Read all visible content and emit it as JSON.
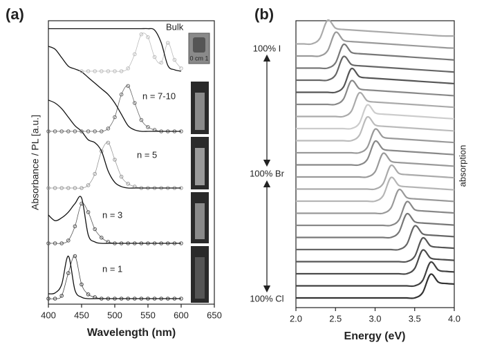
{
  "chart_data": [
    {
      "type": "line",
      "panel_label": "(a)",
      "xlabel": "Wavelength (nm)",
      "ylabel": "Absorbance / PL [a.u.]",
      "inset_label": "0 cm 1",
      "xlim": [
        400,
        650
      ],
      "xticks": [
        400,
        450,
        500,
        550,
        600,
        650
      ],
      "x": [
        400,
        410,
        420,
        430,
        440,
        450,
        460,
        470,
        480,
        490,
        500,
        510,
        520,
        530,
        540,
        550,
        560,
        570,
        580,
        590,
        600
      ],
      "samples": [
        {
          "label": "n = 1",
          "pl_color": "#444444",
          "absorbance": [
            1.7,
            2,
            5,
            15,
            3,
            0.5,
            0,
            0,
            0,
            0,
            0,
            0,
            0,
            0,
            0,
            0,
            0,
            0,
            0,
            0,
            0
          ],
          "pl": [
            0,
            0,
            1,
            9,
            15,
            5,
            1.5,
            0.5,
            0,
            0,
            0,
            0,
            0,
            0,
            0,
            0,
            0,
            0,
            0,
            0,
            0
          ]
        },
        {
          "label": "n = 3",
          "pl_color": "#555555",
          "absorbance": [
            10,
            8,
            9,
            11,
            14,
            16,
            3,
            0.5,
            0,
            0,
            0,
            0,
            0,
            0,
            0,
            0,
            0,
            0,
            0,
            0,
            0
          ],
          "pl": [
            0,
            0,
            0,
            1,
            6,
            14,
            11,
            5,
            2,
            0.5,
            0,
            0,
            0,
            0,
            0,
            0,
            0,
            0,
            0,
            0,
            0
          ]
        },
        {
          "label": "n = 5",
          "pl_color": "#999999",
          "absorbance": [
            31,
            30,
            28,
            25,
            22,
            20,
            17,
            16,
            13,
            6,
            2,
            0.5,
            0,
            0,
            0,
            0,
            0,
            0,
            0,
            0,
            0
          ],
          "pl": [
            0,
            0,
            0,
            0,
            0,
            0,
            1,
            5,
            13,
            16,
            10,
            4,
            1.5,
            0.5,
            0,
            0,
            0,
            0,
            0,
            0,
            0
          ]
        },
        {
          "label": "n = 7-10",
          "pl_color": "#666666",
          "absorbance": [
            30,
            29,
            26,
            23,
            22,
            21,
            19,
            17,
            15,
            13,
            10,
            6,
            2,
            0.5,
            0,
            0,
            0,
            0,
            0,
            0,
            0
          ],
          "pl": [
            0,
            0,
            0,
            0,
            0,
            0,
            0,
            0,
            0,
            1,
            5,
            13,
            16,
            10,
            4,
            1.5,
            0.5,
            0,
            0,
            0,
            0
          ]
        },
        {
          "label": "Bulk",
          "pl_color": "#bbbbbb",
          "absorbance": [
            15,
            15,
            15,
            15,
            15,
            15,
            15,
            15,
            15,
            15,
            15,
            15,
            15,
            15,
            15,
            15,
            14.5,
            10,
            2,
            0.5,
            0
          ],
          "pl": [
            null,
            null,
            null,
            null,
            null,
            0,
            0,
            0,
            0,
            0,
            0,
            0,
            1,
            6,
            13,
            12,
            5,
            3,
            10,
            4,
            1
          ]
        }
      ]
    },
    {
      "type": "line",
      "panel_label": "(b)",
      "xlabel": "Energy (eV)",
      "ylabel": "absorption",
      "annotations": [
        "100% I",
        "100% Br",
        "100% Cl"
      ],
      "xlim": [
        2,
        4
      ],
      "xticks": [
        {
          "value": 2,
          "label": "2.0"
        },
        2.5,
        {
          "value": 3,
          "label": "3.0"
        },
        3.5,
        {
          "value": 4,
          "label": "4.0"
        }
      ],
      "x": [
        2,
        2.1,
        2.2,
        2.3,
        2.4,
        2.5,
        2.6,
        2.7,
        2.8,
        2.9,
        3,
        3.1,
        3.2,
        3.3,
        3.4,
        3.5,
        3.6,
        3.7,
        3.8,
        3.9,
        4
      ],
      "series": [
        {
          "color": "#aaaaaa",
          "values": [
            0,
            0,
            0,
            2,
            9,
            6,
            5.5,
            5.3,
            5.1,
            4.9,
            4.7,
            4.5,
            4.3,
            4.1,
            3.9,
            3.7,
            3.5,
            3.3,
            3.1,
            3,
            3
          ]
        },
        {
          "color": "#9a9a9a",
          "values": [
            0,
            0,
            0,
            0,
            2,
            9,
            6,
            5.5,
            5.3,
            5.1,
            4.9,
            4.7,
            4.5,
            4.3,
            4.1,
            3.9,
            3.7,
            3.5,
            3.3,
            3.1,
            3
          ]
        },
        {
          "color": "#777777",
          "values": [
            0,
            0,
            0,
            0,
            0,
            2,
            9,
            6,
            5.5,
            5.3,
            5.1,
            4.9,
            4.7,
            4.5,
            4.3,
            4.1,
            3.9,
            3.7,
            3.5,
            3.3,
            3.1
          ]
        },
        {
          "color": "#666666",
          "values": [
            0,
            0,
            0,
            0,
            0,
            2,
            9,
            6,
            5.5,
            5.3,
            5.1,
            4.9,
            4.7,
            4.5,
            4.3,
            4.1,
            3.9,
            3.7,
            3.5,
            3.3,
            3.1
          ]
        },
        {
          "color": "#555555",
          "values": [
            0,
            0,
            0,
            0,
            0,
            0,
            2,
            9,
            6,
            5.5,
            5.3,
            5.1,
            4.9,
            4.7,
            4.5,
            4.3,
            4.1,
            3.9,
            3.7,
            3.5,
            3.3
          ]
        },
        {
          "color": "#888888",
          "values": [
            0,
            0,
            0,
            0,
            0,
            0,
            2,
            9,
            6,
            5.5,
            5.3,
            5.1,
            4.9,
            4.7,
            4.5,
            4.3,
            4.1,
            3.9,
            3.7,
            3.5,
            3.3
          ]
        },
        {
          "color": "#aaaaaa",
          "values": [
            0,
            0,
            0,
            0,
            0,
            0,
            0,
            2,
            9,
            6,
            5.5,
            5.3,
            5.1,
            4.9,
            4.7,
            4.5,
            4.3,
            4.1,
            3.9,
            3.7,
            3.5
          ]
        },
        {
          "color": "#cccccc",
          "values": [
            0,
            0,
            0,
            0,
            0,
            0,
            0,
            0,
            2,
            9,
            6,
            5.5,
            5.3,
            5.1,
            4.9,
            4.7,
            4.5,
            4.3,
            4.1,
            3.9,
            3.7
          ]
        },
        {
          "color": "#bbbbbb",
          "values": [
            0,
            0,
            0,
            0,
            0,
            0,
            0,
            0,
            2,
            9,
            6,
            5.5,
            5.3,
            5.1,
            4.9,
            4.7,
            4.5,
            4.3,
            4.1,
            3.9,
            3.7
          ]
        },
        {
          "color": "#999999",
          "values": [
            0,
            0,
            0,
            0,
            0,
            0,
            0,
            0,
            0,
            2,
            9,
            6,
            5.5,
            5.3,
            5.1,
            4.9,
            4.7,
            4.5,
            4.3,
            4.1,
            3.9
          ]
        },
        {
          "color": "#888888",
          "values": [
            0,
            0,
            0,
            0,
            0,
            0,
            0,
            0,
            0,
            2,
            9,
            6,
            5.5,
            5.3,
            5.1,
            4.9,
            4.7,
            4.5,
            4.3,
            4.1,
            3.9
          ]
        },
        {
          "color": "#999999",
          "values": [
            0,
            0,
            0,
            0,
            0,
            0,
            0,
            0,
            0,
            0,
            2,
            9,
            6,
            5.5,
            5.3,
            5.1,
            4.9,
            4.7,
            4.5,
            4.3,
            4.1
          ]
        },
        {
          "color": "#aaaaaa",
          "values": [
            0,
            0,
            0,
            0,
            0,
            0,
            0,
            0,
            0,
            0,
            0,
            2,
            9,
            6,
            5.5,
            5.3,
            5.1,
            4.9,
            4.7,
            4.5,
            4.3
          ]
        },
        {
          "color": "#b5b5b5",
          "values": [
            0,
            0,
            0,
            0,
            0,
            0,
            0,
            0,
            0,
            0,
            0,
            2,
            9,
            6,
            5.5,
            5.3,
            5.1,
            4.9,
            4.7,
            4.5,
            4.3
          ]
        },
        {
          "color": "#999999",
          "values": [
            0,
            0,
            0,
            0,
            0,
            0,
            0,
            0,
            0,
            0,
            0,
            0,
            2,
            9,
            6,
            5.5,
            5.3,
            5.1,
            4.9,
            4.7,
            4.5
          ]
        },
        {
          "color": "#888888",
          "values": [
            0,
            0,
            0,
            0,
            0,
            0,
            0,
            0,
            0,
            0,
            0,
            0,
            0,
            2,
            9,
            6,
            5.5,
            5.3,
            5.1,
            4.9,
            4.7
          ]
        },
        {
          "color": "#777777",
          "values": [
            0,
            0,
            0,
            0,
            0,
            0,
            0,
            0,
            0,
            0,
            0,
            0,
            0,
            2,
            9,
            6,
            5.5,
            5.3,
            5.1,
            4.9,
            4.7
          ]
        },
        {
          "color": "#666666",
          "values": [
            0,
            0,
            0,
            0,
            0,
            0,
            0,
            0,
            0,
            0,
            0,
            0,
            0,
            0,
            2,
            9,
            6,
            5.5,
            5.3,
            5.1,
            4.9
          ]
        },
        {
          "color": "#555555",
          "values": [
            0,
            0,
            0,
            0,
            0,
            0,
            0,
            0,
            0,
            0,
            0,
            0,
            0,
            0,
            0,
            2,
            9,
            6,
            5.5,
            5.3,
            5.1
          ]
        },
        {
          "color": "#4a4a4a",
          "values": [
            0,
            0,
            0,
            0,
            0,
            0,
            0,
            0,
            0,
            0,
            0,
            0,
            0,
            0,
            0,
            2,
            9,
            6,
            5.5,
            5.3,
            5.1
          ]
        },
        {
          "color": "#404040",
          "values": [
            0,
            0,
            0,
            0,
            0,
            0,
            0,
            0,
            0,
            0,
            0,
            0,
            0,
            0,
            0,
            0,
            2,
            9,
            6,
            5.5,
            5.3
          ]
        },
        {
          "color": "#333333",
          "values": [
            0,
            0,
            0,
            0,
            0,
            0,
            0,
            0,
            0,
            0,
            0,
            0,
            0,
            0,
            0,
            0,
            2,
            9,
            6,
            5.5,
            5.3
          ]
        }
      ]
    }
  ]
}
